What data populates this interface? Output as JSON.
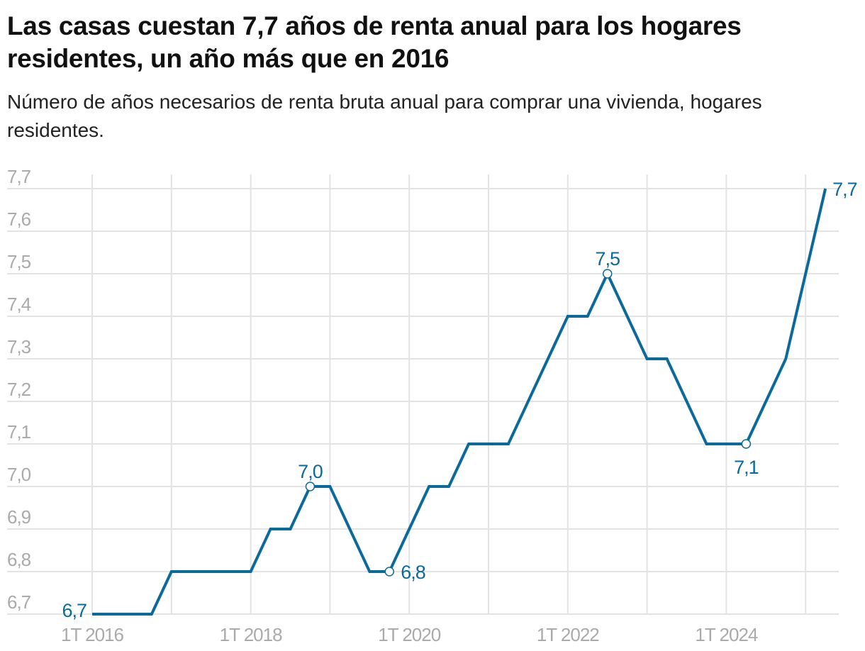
{
  "chart_data": {
    "type": "line",
    "title": "Las casas cuestan 7,7 años de renta anual para los hogares residentes, un año más que en 2016",
    "subtitle": "Número de años necesarios de renta bruta anual para comprar una vivienda, hogares residentes.",
    "xlabel": "",
    "ylabel": "",
    "ylim": [
      6.7,
      7.7
    ],
    "y_ticks": [
      "6,7",
      "6,8",
      "6,9",
      "7,0",
      "7,1",
      "7,2",
      "7,3",
      "7,4",
      "7,5",
      "7,6",
      "7,7"
    ],
    "x_tick_labels": [
      "1T 2016",
      "1T 2018",
      "1T 2020",
      "1T 2022",
      "1T 2024"
    ],
    "grid": true,
    "x_start": "1T 2016",
    "x_frequency": "quarterly",
    "series": [
      {
        "name": "Años de renta",
        "color": "#0b6a9c",
        "values": [
          6.7,
          6.7,
          6.7,
          6.7,
          6.8,
          6.8,
          6.8,
          6.8,
          6.8,
          6.9,
          6.9,
          7.0,
          7.0,
          6.9,
          6.8,
          6.8,
          6.9,
          7.0,
          7.0,
          7.1,
          7.1,
          7.1,
          7.2,
          7.3,
          7.4,
          7.4,
          7.5,
          7.4,
          7.3,
          7.3,
          7.2,
          7.1,
          7.1,
          7.1,
          7.2,
          7.3,
          7.5,
          7.7
        ]
      }
    ],
    "annotations": [
      {
        "index": 0,
        "label": "6,7",
        "marker": false,
        "pos": "left"
      },
      {
        "index": 11,
        "label": "7,0",
        "marker": true,
        "pos": "above"
      },
      {
        "index": 15,
        "label": "6,8",
        "marker": true,
        "pos": "right"
      },
      {
        "index": 26,
        "label": "7,5",
        "marker": true,
        "pos": "above"
      },
      {
        "index": 33,
        "label": "7,1",
        "marker": true,
        "pos": "below"
      },
      {
        "index": 37,
        "label": "7,7",
        "marker": false,
        "pos": "right"
      }
    ]
  }
}
